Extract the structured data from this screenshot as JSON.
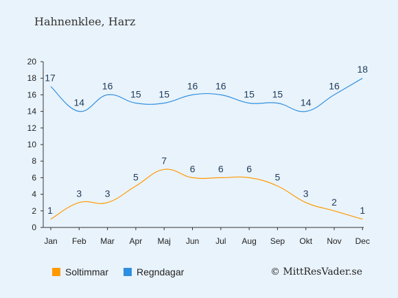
{
  "title": "Hahnenklee, Harz",
  "credit": "© MittResVader.se",
  "chart_data": {
    "type": "line",
    "categories": [
      "Jan",
      "Feb",
      "Mar",
      "Apr",
      "Maj",
      "Jun",
      "Jul",
      "Aug",
      "Sep",
      "Okt",
      "Nov",
      "Dec"
    ],
    "ylim": [
      0,
      20
    ],
    "yticks": [
      "0",
      "2",
      "4",
      "6",
      "8",
      "10",
      "12",
      "14",
      "16",
      "18",
      "20"
    ],
    "grid": false,
    "legend_position": "bottom",
    "series": [
      {
        "name": "Soltimmar",
        "color": "#ff9900",
        "values": [
          1,
          3,
          3,
          5,
          7,
          6,
          6,
          6,
          5,
          3,
          2,
          1
        ]
      },
      {
        "name": "Regndagar",
        "color": "#2e8fe0",
        "values": [
          17,
          14,
          16,
          15,
          15,
          16,
          16,
          15,
          15,
          14,
          16,
          18
        ]
      }
    ]
  }
}
